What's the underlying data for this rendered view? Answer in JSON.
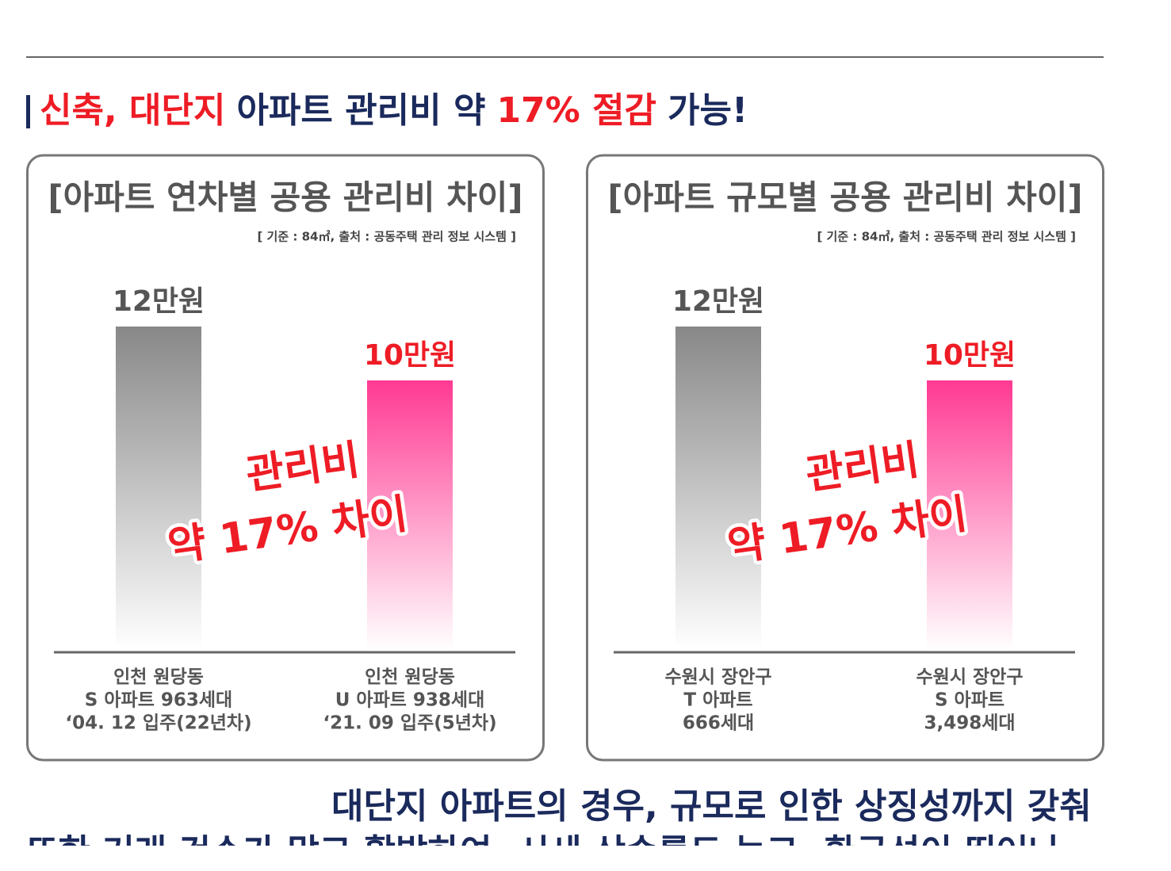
{
  "header": {
    "title": [
      {
        "text": "신축, 대단지",
        "color": "#ee1c25"
      },
      {
        "text": "아파트 관리비 약",
        "color": "#1b2a5c"
      },
      {
        "text": "17% 절감",
        "color": "#ee1c25"
      },
      {
        "text": "가능!",
        "color": "#1b2a5c"
      }
    ]
  },
  "chart_data": [
    {
      "type": "bar",
      "title": "[아파트 연차별 공용 관리비 차이]",
      "subtitle": "[ 기준 : 84㎡, 출처 : 공동주택 관리 정보 시스템 ]",
      "categories": [
        [
          "인천 원당동",
          "S 아파트 963세대",
          "‘04. 12 입주(22년차)"
        ],
        [
          "인천 원당동",
          "U 아파트 938세대",
          "‘21. 09 입주(5년차)"
        ]
      ],
      "values": [
        12,
        10
      ],
      "value_labels": [
        "12만원",
        "10만원"
      ],
      "colors": [
        "#888888",
        "#ff3a93"
      ],
      "value_label_colors": [
        "#555555",
        "#ee1c25"
      ],
      "annotation": [
        "관리비",
        "약 17% 차이"
      ]
    },
    {
      "type": "bar",
      "title": "[아파트 규모별 공용 관리비 차이]",
      "subtitle": "[ 기준 : 84㎡, 출처 : 공동주택 관리 정보 시스템 ]",
      "categories": [
        [
          "수원시 장안구",
          "T 아파트",
          "666세대"
        ],
        [
          "수원시 장안구",
          "S 아파트",
          "3,498세대"
        ]
      ],
      "values": [
        12,
        10
      ],
      "value_labels": [
        "12만원",
        "10만원"
      ],
      "colors": [
        "#888888",
        "#ff3a93"
      ],
      "value_label_colors": [
        "#555555",
        "#ee1c25"
      ],
      "annotation": [
        "관리비",
        "약 17% 차이"
      ]
    }
  ],
  "footer": {
    "lines": [
      "대단지 아파트의 경우, 규모로 인한 상징성까지 갖춰",
      "또한 거래 건수가 많고 활발하여, 시세 상승률도 높고, 환금성이 뛰어나"
    ]
  }
}
